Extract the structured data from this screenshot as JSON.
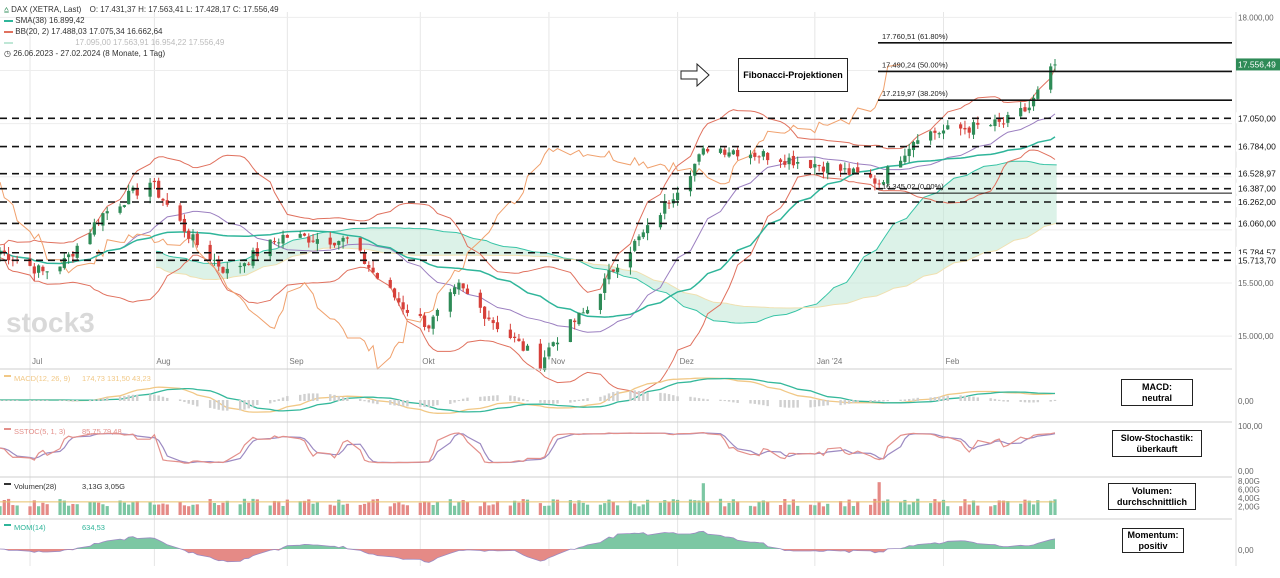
{
  "header": {
    "instrument": "DAX (XETRA, Last)",
    "ohlc": "O: 17.431,37   H: 17.563,41   L: 17.428,17   C: 17.556,49",
    "sma_label": "SMA(38)",
    "sma_value": "16.899,42",
    "bb_label": "BB(20, 2)",
    "bb_values": "17.488,03   17.075,34   16.662,64",
    "ichimoku_values": "17.095,00   17.563,91   16.954,22   17.556,49",
    "range": "26.06.2023 - 27.02.2024  (8 Monate, 1 Tag)"
  },
  "colors": {
    "up": "#2e8b57",
    "down": "#d6403a",
    "sma": "#2fb59a",
    "bb": "#e0715e",
    "chikou": "#f0a16d",
    "kijun": "#9b7fc0",
    "cloud_green": "#bfe7d6",
    "cloud_red": "#f3c9cf",
    "macd": "#f1c886",
    "macd_signal": "#35b89b",
    "stoch_k": "#e38f8a",
    "stoch_d": "#9c8ac2"
  },
  "watermark": "stock3",
  "fib": {
    "title": "Fibonacci-Projektionen",
    "levels": [
      "17.760,51 (61.80%)",
      "17.490,24 (50.00%)",
      "17.219,97 (38.20%)",
      "16.345,02 (0.00%)"
    ]
  },
  "price_axis": {
    "ticks": [
      "18.000,00",
      "15.500,00",
      "15.000,00"
    ],
    "levels": [
      "17.050,00",
      "16.784,00",
      "16.528,97",
      "16.387,00",
      "16.262,00",
      "16.060,00",
      "15.784,57",
      "15.713,70"
    ],
    "last": "17.556,49"
  },
  "months": [
    "Jul",
    "Aug",
    "Sep",
    "Okt",
    "Nov",
    "Dez",
    "Jan '24",
    "Feb"
  ],
  "macd": {
    "label": "MACD(12, 26, 9)",
    "values": "174,73   131,50   43,23",
    "axis": "0,00",
    "note": "MACD:\nneutral"
  },
  "stoch": {
    "label": "SSTOC(5, 1, 3)",
    "values": "85,75   79,48",
    "axis_top": "100,00",
    "axis_bottom": "0,00",
    "note": "Slow-Stochastik:\nüberkauft"
  },
  "volume": {
    "label": "Volumen(28)",
    "values": "3,13G   3,05G",
    "axis": [
      "8,00G",
      "6,00G",
      "4,00G",
      "2,00G"
    ],
    "note": "Volumen:\ndurchschnittlich"
  },
  "momentum": {
    "label": "MOM(14)",
    "values": "634,53",
    "axis": "0,00",
    "note": "Momentum:\npositiv"
  },
  "chart_data": {
    "type": "candlestick",
    "title": "DAX (XETRA, Last)",
    "period": "26.06.2023 - 27.02.2024",
    "ylim": [
      14700,
      18050
    ],
    "close_anchors": [
      [
        "2023-06-26",
        15800
      ],
      [
        "2023-07-06",
        15600
      ],
      [
        "2023-07-11",
        15700
      ],
      [
        "2023-07-20",
        16150
      ],
      [
        "2023-07-31",
        16450
      ],
      [
        "2023-08-10",
        15900
      ],
      [
        "2023-08-18",
        15600
      ],
      [
        "2023-08-31",
        15940
      ],
      [
        "2023-09-15",
        15900
      ],
      [
        "2023-09-22",
        15550
      ],
      [
        "2023-09-28",
        15280
      ],
      [
        "2023-10-04",
        15100
      ],
      [
        "2023-10-11",
        15460
      ],
      [
        "2023-10-20",
        15100
      ],
      [
        "2023-10-30",
        14750
      ],
      [
        "2023-11-02",
        14950
      ],
      [
        "2023-11-10",
        15250
      ],
      [
        "2023-11-17",
        15700
      ],
      [
        "2023-11-24",
        16000
      ],
      [
        "2023-12-01",
        16400
      ],
      [
        "2023-12-08",
        16780
      ],
      [
        "2023-12-14",
        16750
      ],
      [
        "2023-12-22",
        16700
      ],
      [
        "2024-01-05",
        16600
      ],
      [
        "2024-01-17",
        16450
      ],
      [
        "2024-01-26",
        16900
      ],
      [
        "2024-02-05",
        16950
      ],
      [
        "2024-02-15",
        17000
      ],
      [
        "2024-02-21",
        17150
      ],
      [
        "2024-02-27",
        17556
      ]
    ],
    "horizontal_levels": [
      17050.0,
      16784.0,
      16528.97,
      16387.0,
      16262.0,
      16060.0,
      15784.57,
      15713.7
    ],
    "fib_projection_levels": [
      {
        "label": "61.80%",
        "value": 17760.51
      },
      {
        "label": "50.00%",
        "value": 17490.24
      },
      {
        "label": "38.20%",
        "value": 17219.97
      },
      {
        "label": "0.00%",
        "value": 16345.02
      }
    ],
    "last_close": 17556.49,
    "indicators": {
      "sma38": 16899.42,
      "bollinger": {
        "upper": 17488.03,
        "middle": 17075.34,
        "lower": 16662.64
      },
      "macd": {
        "macd": 174.73,
        "signal": 131.5,
        "histogram": 43.23
      },
      "slow_stochastic": {
        "k": 85.75,
        "d": 79.48
      },
      "volume": {
        "value": "3,13G",
        "average": "3,05G"
      },
      "momentum14": 634.53
    }
  }
}
